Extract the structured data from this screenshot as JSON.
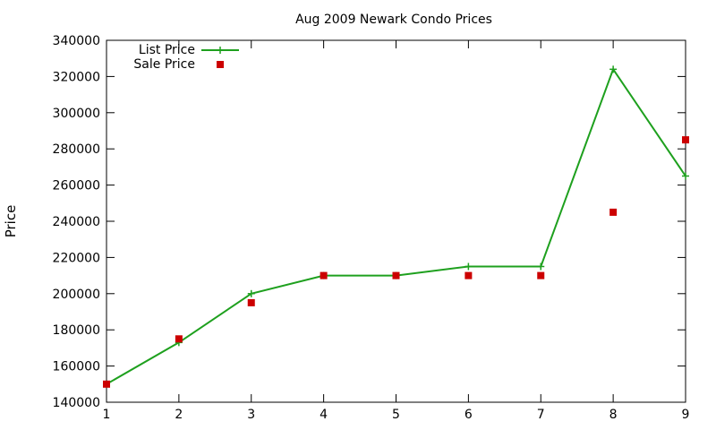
{
  "chart_data": {
    "type": "line",
    "title": "Aug 2009 Newark Condo Prices",
    "xlabel": "",
    "ylabel": "Price",
    "xlim": [
      1,
      9
    ],
    "ylim": [
      140000,
      340000
    ],
    "x_ticks": [
      "1",
      "2",
      "3",
      "4",
      "5",
      "6",
      "7",
      "8",
      "9"
    ],
    "y_ticks": [
      "140000",
      "160000",
      "180000",
      "200000",
      "220000",
      "240000",
      "260000",
      "280000",
      "300000",
      "320000",
      "340000"
    ],
    "grid": false,
    "legend_position": "top-left",
    "x": [
      1,
      2,
      3,
      4,
      5,
      6,
      7,
      8,
      9
    ],
    "series": [
      {
        "name": "List Price",
        "style": "line-with-plus-markers",
        "color": "#1ea01e",
        "values": [
          150000,
          173000,
          200000,
          210000,
          210000,
          215000,
          215000,
          324000,
          265000
        ]
      },
      {
        "name": "Sale Price",
        "style": "square-points",
        "color": "#cc0000",
        "values": [
          150000,
          175000,
          195000,
          210000,
          210000,
          210000,
          210000,
          245000,
          285000
        ]
      }
    ]
  }
}
